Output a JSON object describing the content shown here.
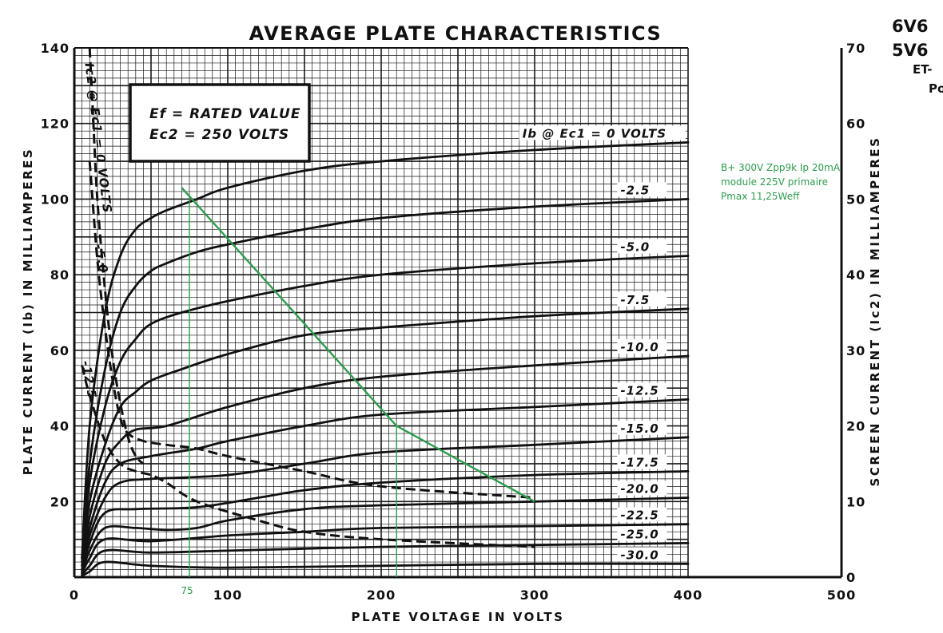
{
  "chart_data": {
    "type": "line",
    "title": "AVERAGE PLATE CHARACTERISTICS",
    "xlabel": "PLATE VOLTAGE IN VOLTS",
    "ylabel": "PLATE CURRENT (Ib) IN MILLIAMPERES",
    "y2label": "SCREEN CURRENT (Ic2) IN MILLIAMPERES",
    "xlim": [
      0,
      500
    ],
    "ylim": [
      0,
      140
    ],
    "y2lim": [
      0,
      70
    ],
    "x_ticks": [
      0,
      100,
      200,
      300,
      400,
      500
    ],
    "y_ticks": [
      20,
      40,
      60,
      80,
      100,
      120,
      140
    ],
    "y2_ticks": [
      0,
      10,
      20,
      30,
      40,
      50,
      60,
      70
    ],
    "grid": true,
    "conditions": [
      "Ef = RATED VALUE",
      "Ec2 = 250 VOLTS"
    ],
    "plate_series": [
      {
        "name": "Ib @ Ec1 = 0 VOLTS",
        "x": [
          5,
          10,
          20,
          30,
          40,
          50,
          60,
          80,
          100,
          150,
          200,
          300,
          400
        ],
        "y": [
          5,
          40,
          70,
          85,
          92,
          95,
          97,
          100,
          103,
          107.5,
          110,
          113,
          115
        ]
      },
      {
        "name": "-2.5",
        "x": [
          5,
          10,
          20,
          30,
          40,
          50,
          60,
          80,
          100,
          150,
          200,
          300,
          400
        ],
        "y": [
          5,
          30,
          55,
          70,
          77,
          81,
          83,
          86,
          88,
          92,
          95,
          98,
          100
        ]
      },
      {
        "name": "-5.0",
        "x": [
          5,
          10,
          20,
          30,
          40,
          50,
          70,
          100,
          150,
          200,
          300,
          400
        ],
        "y": [
          4,
          25,
          45,
          57,
          63,
          67,
          70,
          73,
          77,
          80,
          83,
          85
        ]
      },
      {
        "name": "-7.5",
        "x": [
          5,
          10,
          20,
          30,
          40,
          50,
          70,
          100,
          150,
          200,
          300,
          400
        ],
        "y": [
          3,
          20,
          35,
          45,
          49,
          52,
          55,
          59,
          64,
          66,
          69,
          71
        ]
      },
      {
        "name": "-10.0",
        "x": [
          5,
          10,
          20,
          30,
          40,
          60,
          100,
          150,
          200,
          300,
          400
        ],
        "y": [
          3,
          16,
          30,
          36,
          39,
          40,
          45,
          50,
          53,
          56,
          58.5
        ]
      },
      {
        "name": "-12.5",
        "x": [
          5,
          10,
          20,
          30,
          50,
          80,
          100,
          150,
          200,
          300,
          400
        ],
        "y": [
          2,
          13,
          25,
          30,
          32,
          34,
          36,
          40,
          43,
          45,
          47
        ]
      },
      {
        "name": "-15.0",
        "x": [
          5,
          10,
          20,
          30,
          50,
          100,
          150,
          200,
          300,
          400
        ],
        "y": [
          2,
          11,
          21,
          25,
          26,
          27,
          30,
          33,
          35,
          37
        ]
      },
      {
        "name": "-17.5",
        "x": [
          5,
          10,
          20,
          40,
          80,
          120,
          150,
          200,
          300,
          400
        ],
        "y": [
          1.5,
          9,
          17,
          18,
          18.5,
          21,
          23,
          25,
          27,
          28
        ]
      },
      {
        "name": "-20.0",
        "x": [
          5,
          10,
          20,
          40,
          60,
          80,
          100,
          150,
          200,
          300,
          400
        ],
        "y": [
          1,
          7,
          13,
          13,
          12.5,
          13,
          15,
          18,
          19,
          20,
          21
        ]
      },
      {
        "name": "-22.5",
        "x": [
          5,
          10,
          20,
          50,
          100,
          150,
          200,
          300,
          400
        ],
        "y": [
          1,
          5,
          10,
          9.5,
          11,
          12,
          13,
          13.5,
          14
        ]
      },
      {
        "name": "-25.0",
        "x": [
          5,
          10,
          20,
          50,
          100,
          200,
          300,
          400
        ],
        "y": [
          0.5,
          3,
          7,
          6.5,
          7,
          8,
          8.5,
          9
        ]
      },
      {
        "name": "-30.0",
        "x": [
          5,
          10,
          20,
          50,
          100,
          200,
          300,
          400
        ],
        "y": [
          0.3,
          1.5,
          4,
          3,
          2.5,
          3,
          3.5,
          3.5
        ]
      }
    ],
    "screen_series": [
      {
        "name": "Ic2 @ Ec1 = 0 VOLTS",
        "x": [
          10,
          12,
          15,
          20,
          25,
          30,
          35,
          40,
          45
        ],
        "y2": [
          70,
          62,
          50,
          38,
          29,
          23,
          18.5,
          16,
          15
        ]
      },
      {
        "name": "-5.0",
        "x": [
          10,
          15,
          20,
          25,
          30,
          35,
          45,
          60,
          80,
          100,
          150,
          200,
          300
        ],
        "y2": [
          55,
          42,
          33,
          26,
          21,
          19,
          18,
          17.5,
          17,
          16,
          14,
          12,
          10.5
        ]
      },
      {
        "name": "-12.5",
        "x": [
          5,
          10,
          20,
          30,
          40,
          50,
          60,
          80,
          120,
          150,
          200,
          300
        ],
        "y2": [
          28,
          24,
          18,
          15,
          14,
          13.5,
          12.5,
          10,
          7.5,
          6,
          5,
          4
        ]
      }
    ],
    "load_line": {
      "label": "B+ 300V Zpp9k Ip 20mA module 225V primaire Pmax 11,25Weff",
      "x": [
        70,
        210,
        300
      ],
      "y": [
        103,
        40,
        20
      ]
    },
    "markers": {
      "x_values": [
        75,
        210
      ],
      "label": "75"
    }
  },
  "annotation": {
    "line1": "B+ 300V Zpp9k Ip 20mA",
    "line2": "module 225V primaire",
    "line3": "Pmax 11,25Weff"
  },
  "corner": {
    "code1": "6V6",
    "code2": "5V6",
    "code3": "ET-",
    "code4": "Po"
  },
  "colors": {
    "ink": "#111111",
    "grid": "#1a1a1a",
    "loadline": "#2e9b4e"
  }
}
